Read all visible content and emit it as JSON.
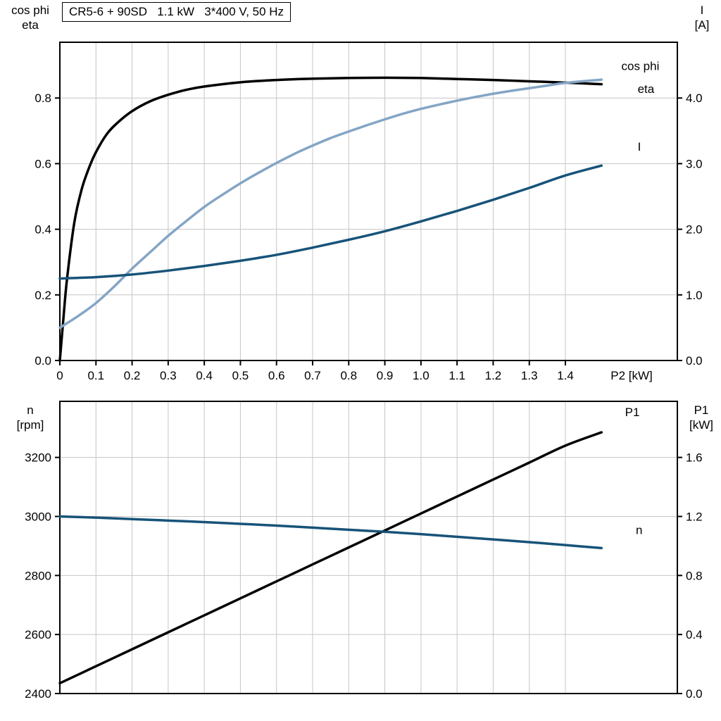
{
  "chart_data": [
    {
      "id": "motor-performance-top",
      "type": "line",
      "title": "CR5-6 + 90SD   1.1 kW   3*400 V, 50 Hz",
      "grid": true,
      "legend_position": "curve-end-labels",
      "x_axis": {
        "label": "P2 [kW]",
        "min": 0,
        "max": 1.71,
        "tick_values": [
          0,
          0.1,
          0.2,
          0.3,
          0.4,
          0.5,
          0.6,
          0.7,
          0.8,
          0.9,
          1.0,
          1.1,
          1.2,
          1.3,
          1.4
        ],
        "tick_labels": [
          "0",
          "0.1",
          "0.2",
          "0.3",
          "0.4",
          "0.5",
          "0.6",
          "0.7",
          "0.8",
          "0.9",
          "1.0",
          "1.1",
          "1.2",
          "1.3",
          "1.4"
        ],
        "show_labels": true
      },
      "y_left": {
        "title_lines": [
          "cos phi",
          "eta"
        ],
        "min": 0,
        "max": 0.97,
        "tick_values": [
          0,
          0.2,
          0.4,
          0.6,
          0.8
        ],
        "tick_labels": [
          "0.0",
          "0.2",
          "0.4",
          "0.6",
          "0.8"
        ]
      },
      "y_right": {
        "title_lines": [
          "I",
          "[A]"
        ],
        "min": 0,
        "max": 4.85,
        "tick_values": [
          0,
          1,
          2,
          3,
          4
        ],
        "tick_labels": [
          "0.0",
          "1.0",
          "2.0",
          "3.0",
          "4.0"
        ]
      },
      "series": [
        {
          "name": "eta",
          "axis": "left",
          "color": "#000000",
          "label": {
            "text": "eta",
            "x": 1.6,
            "y": 0.815
          },
          "points": [
            [
              0,
              0
            ],
            [
              0.01,
              0.13
            ],
            [
              0.02,
              0.25
            ],
            [
              0.04,
              0.42
            ],
            [
              0.06,
              0.52
            ],
            [
              0.08,
              0.585
            ],
            [
              0.1,
              0.635
            ],
            [
              0.13,
              0.69
            ],
            [
              0.16,
              0.725
            ],
            [
              0.2,
              0.76
            ],
            [
              0.25,
              0.79
            ],
            [
              0.3,
              0.81
            ],
            [
              0.35,
              0.825
            ],
            [
              0.4,
              0.835
            ],
            [
              0.5,
              0.848
            ],
            [
              0.6,
              0.855
            ],
            [
              0.7,
              0.859
            ],
            [
              0.8,
              0.861
            ],
            [
              0.9,
              0.862
            ],
            [
              1.0,
              0.861
            ],
            [
              1.1,
              0.858
            ],
            [
              1.2,
              0.855
            ],
            [
              1.3,
              0.851
            ],
            [
              1.4,
              0.847
            ],
            [
              1.5,
              0.842
            ]
          ]
        },
        {
          "name": "cos phi",
          "axis": "left",
          "color": "#84a5c5",
          "label": {
            "text": "cos phi",
            "x": 1.555,
            "y": 0.885
          },
          "points": [
            [
              0,
              0.1
            ],
            [
              0.05,
              0.135
            ],
            [
              0.1,
              0.175
            ],
            [
              0.15,
              0.225
            ],
            [
              0.2,
              0.28
            ],
            [
              0.25,
              0.33
            ],
            [
              0.3,
              0.38
            ],
            [
              0.35,
              0.425
            ],
            [
              0.4,
              0.468
            ],
            [
              0.45,
              0.505
            ],
            [
              0.5,
              0.54
            ],
            [
              0.55,
              0.572
            ],
            [
              0.6,
              0.602
            ],
            [
              0.65,
              0.63
            ],
            [
              0.7,
              0.655
            ],
            [
              0.75,
              0.678
            ],
            [
              0.8,
              0.698
            ],
            [
              0.85,
              0.717
            ],
            [
              0.9,
              0.735
            ],
            [
              0.95,
              0.752
            ],
            [
              1.0,
              0.767
            ],
            [
              1.05,
              0.78
            ],
            [
              1.1,
              0.792
            ],
            [
              1.15,
              0.803
            ],
            [
              1.2,
              0.813
            ],
            [
              1.25,
              0.822
            ],
            [
              1.3,
              0.83
            ],
            [
              1.35,
              0.838
            ],
            [
              1.4,
              0.846
            ],
            [
              1.5,
              0.856
            ]
          ]
        },
        {
          "name": "I",
          "axis": "right",
          "color": "#175379",
          "label": {
            "text": "I",
            "x": 1.6,
            "y": 3.2
          },
          "points": [
            [
              0,
              1.25
            ],
            [
              0.1,
              1.27
            ],
            [
              0.2,
              1.31
            ],
            [
              0.3,
              1.37
            ],
            [
              0.4,
              1.44
            ],
            [
              0.5,
              1.52
            ],
            [
              0.6,
              1.61
            ],
            [
              0.7,
              1.72
            ],
            [
              0.8,
              1.84
            ],
            [
              0.9,
              1.97
            ],
            [
              1.0,
              2.12
            ],
            [
              1.1,
              2.28
            ],
            [
              1.2,
              2.45
            ],
            [
              1.3,
              2.63
            ],
            [
              1.4,
              2.82
            ],
            [
              1.5,
              2.97
            ]
          ]
        }
      ]
    },
    {
      "id": "motor-performance-bottom",
      "type": "line",
      "title": "",
      "grid": true,
      "legend_position": "curve-end-labels",
      "x_axis": {
        "label": "",
        "min": 0,
        "max": 1.71,
        "tick_values": [
          0,
          0.1,
          0.2,
          0.3,
          0.4,
          0.5,
          0.6,
          0.7,
          0.8,
          0.9,
          1.0,
          1.1,
          1.2,
          1.3,
          1.4
        ],
        "tick_labels": [
          "0",
          "0.1",
          "0.2",
          "0.3",
          "0.4",
          "0.5",
          "0.6",
          "0.7",
          "0.8",
          "0.9",
          "1.0",
          "1.1",
          "1.2",
          "1.3",
          "1.4"
        ],
        "show_labels": false
      },
      "y_left": {
        "title_lines": [
          "n",
          "[rpm]"
        ],
        "min": 2400,
        "max": 3390,
        "tick_values": [
          2400,
          2600,
          2800,
          3000,
          3200
        ],
        "tick_labels": [
          "2400",
          "2600",
          "2800",
          "3000",
          "3200"
        ]
      },
      "y_right": {
        "title_lines": [
          "P1",
          "[kW]"
        ],
        "min": 0,
        "max": 1.98,
        "tick_values": [
          0,
          0.4,
          0.8,
          1.2,
          1.6
        ],
        "tick_labels": [
          "0.0",
          "0.4",
          "0.8",
          "1.2",
          "1.6"
        ]
      },
      "series": [
        {
          "name": "P1",
          "axis": "right",
          "color": "#000000",
          "label": {
            "text": "P1",
            "x": 1.565,
            "y": 1.88
          },
          "points": [
            [
              0,
              0.07
            ],
            [
              0.1,
              0.185
            ],
            [
              0.2,
              0.3
            ],
            [
              0.3,
              0.415
            ],
            [
              0.4,
              0.53
            ],
            [
              0.5,
              0.645
            ],
            [
              0.6,
              0.76
            ],
            [
              0.7,
              0.875
            ],
            [
              0.8,
              0.99
            ],
            [
              0.9,
              1.105
            ],
            [
              1.0,
              1.22
            ],
            [
              1.1,
              1.335
            ],
            [
              1.2,
              1.45
            ],
            [
              1.3,
              1.565
            ],
            [
              1.4,
              1.68
            ],
            [
              1.5,
              1.77
            ]
          ]
        },
        {
          "name": "n",
          "axis": "left",
          "color": "#175379",
          "label": {
            "text": "n",
            "x": 1.595,
            "y": 2940
          },
          "points": [
            [
              0,
              3000
            ],
            [
              0.1,
              2996
            ],
            [
              0.2,
              2991
            ],
            [
              0.3,
              2986
            ],
            [
              0.4,
              2981
            ],
            [
              0.5,
              2975
            ],
            [
              0.6,
              2969
            ],
            [
              0.7,
              2962
            ],
            [
              0.8,
              2955
            ],
            [
              0.9,
              2948
            ],
            [
              1.0,
              2940
            ],
            [
              1.1,
              2931
            ],
            [
              1.2,
              2922
            ],
            [
              1.3,
              2913
            ],
            [
              1.4,
              2903
            ],
            [
              1.5,
              2893
            ]
          ]
        }
      ]
    }
  ],
  "style": {
    "grid_color": "#c6c6c6",
    "frame_color": "#000000",
    "accent_dark_blue": "#175379",
    "accent_light_blue": "#84a5c5"
  }
}
